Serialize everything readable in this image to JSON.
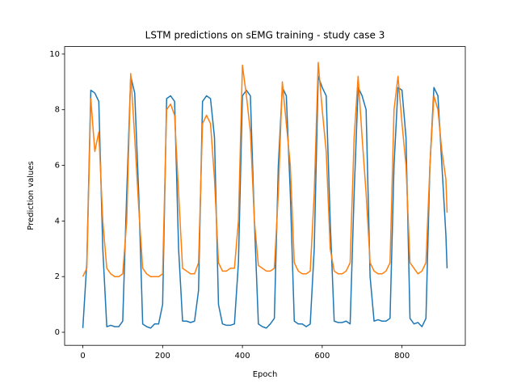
{
  "chart_data": {
    "type": "line",
    "title": "LSTM predictions on sEMG training - study case 3",
    "x_label": "Epoch",
    "y_label": "Prediction values",
    "x": [
      0,
      10,
      20,
      30,
      40,
      50,
      60,
      70,
      80,
      90,
      100,
      110,
      120,
      130,
      140,
      150,
      160,
      170,
      180,
      190,
      200,
      210,
      220,
      230,
      240,
      250,
      260,
      270,
      280,
      290,
      300,
      310,
      320,
      330,
      340,
      350,
      360,
      370,
      380,
      390,
      400,
      410,
      420,
      430,
      440,
      450,
      460,
      470,
      480,
      490,
      500,
      510,
      520,
      530,
      540,
      550,
      560,
      570,
      580,
      590,
      600,
      610,
      620,
      630,
      640,
      650,
      660,
      670,
      680,
      690,
      700,
      710,
      720,
      730,
      740,
      750,
      760,
      770,
      780,
      790,
      800,
      810,
      820,
      830,
      840,
      850,
      860,
      870,
      880,
      890,
      900,
      910,
      913
    ],
    "series": [
      {
        "color": "#1f77b4",
        "values": [
          0.15,
          2.5,
          8.7,
          8.6,
          8.3,
          3,
          0.2,
          0.25,
          0.2,
          0.2,
          0.4,
          5,
          9.2,
          8.6,
          5,
          0.3,
          0.2,
          0.15,
          0.3,
          0.3,
          1,
          8.4,
          8.5,
          8.3,
          3,
          0.4,
          0.4,
          0.35,
          0.4,
          1.5,
          8.3,
          8.5,
          8.4,
          7,
          1,
          0.3,
          0.25,
          0.25,
          0.3,
          2.5,
          8.5,
          8.7,
          8.5,
          4,
          0.3,
          0.2,
          0.15,
          0.3,
          0.5,
          6,
          8.8,
          8.5,
          5,
          0.4,
          0.3,
          0.3,
          0.2,
          0.3,
          3,
          9.2,
          8.8,
          8.5,
          4,
          0.4,
          0.35,
          0.35,
          0.4,
          0.3,
          5,
          8.8,
          8.5,
          8,
          2,
          0.4,
          0.45,
          0.4,
          0.4,
          0.5,
          6,
          8.8,
          8.7,
          7,
          0.5,
          0.3,
          0.35,
          0.2,
          0.5,
          6,
          8.8,
          8.5,
          6,
          3.5,
          2.3
        ]
      },
      {
        "color": "#ff7f0e",
        "values": [
          2,
          2.3,
          8.4,
          6.5,
          7.2,
          4,
          2.3,
          2.1,
          2,
          2,
          2.1,
          4,
          9.3,
          7,
          4.5,
          2.3,
          2.1,
          2,
          2,
          2,
          2.1,
          8,
          8.2,
          7.8,
          5,
          2.3,
          2.2,
          2.1,
          2.1,
          2.5,
          7.5,
          7.8,
          7.5,
          5.5,
          2.5,
          2.2,
          2.2,
          2.3,
          2.3,
          4,
          9.6,
          8.5,
          7.2,
          4,
          2.4,
          2.3,
          2.2,
          2.2,
          2.3,
          5,
          9,
          7.5,
          6,
          2.5,
          2.2,
          2.1,
          2.1,
          2.2,
          5,
          9.7,
          8,
          6.5,
          3,
          2.2,
          2.1,
          2.1,
          2.2,
          2.5,
          7,
          9.2,
          7,
          5,
          2.5,
          2.2,
          2.1,
          2.1,
          2.2,
          2.5,
          8,
          9.2,
          7.5,
          6,
          2.5,
          2.3,
          2.1,
          2.2,
          2.5,
          6,
          8.5,
          8,
          6.5,
          5.5,
          4.3
        ]
      }
    ],
    "xlim": [
      -45.65,
      958.65
    ],
    "ylim": [
      -0.47,
      10.27
    ],
    "xticks": [
      0,
      200,
      400,
      600,
      800
    ],
    "yticks": [
      0,
      2,
      4,
      6,
      8,
      10
    ],
    "grid": false
  }
}
